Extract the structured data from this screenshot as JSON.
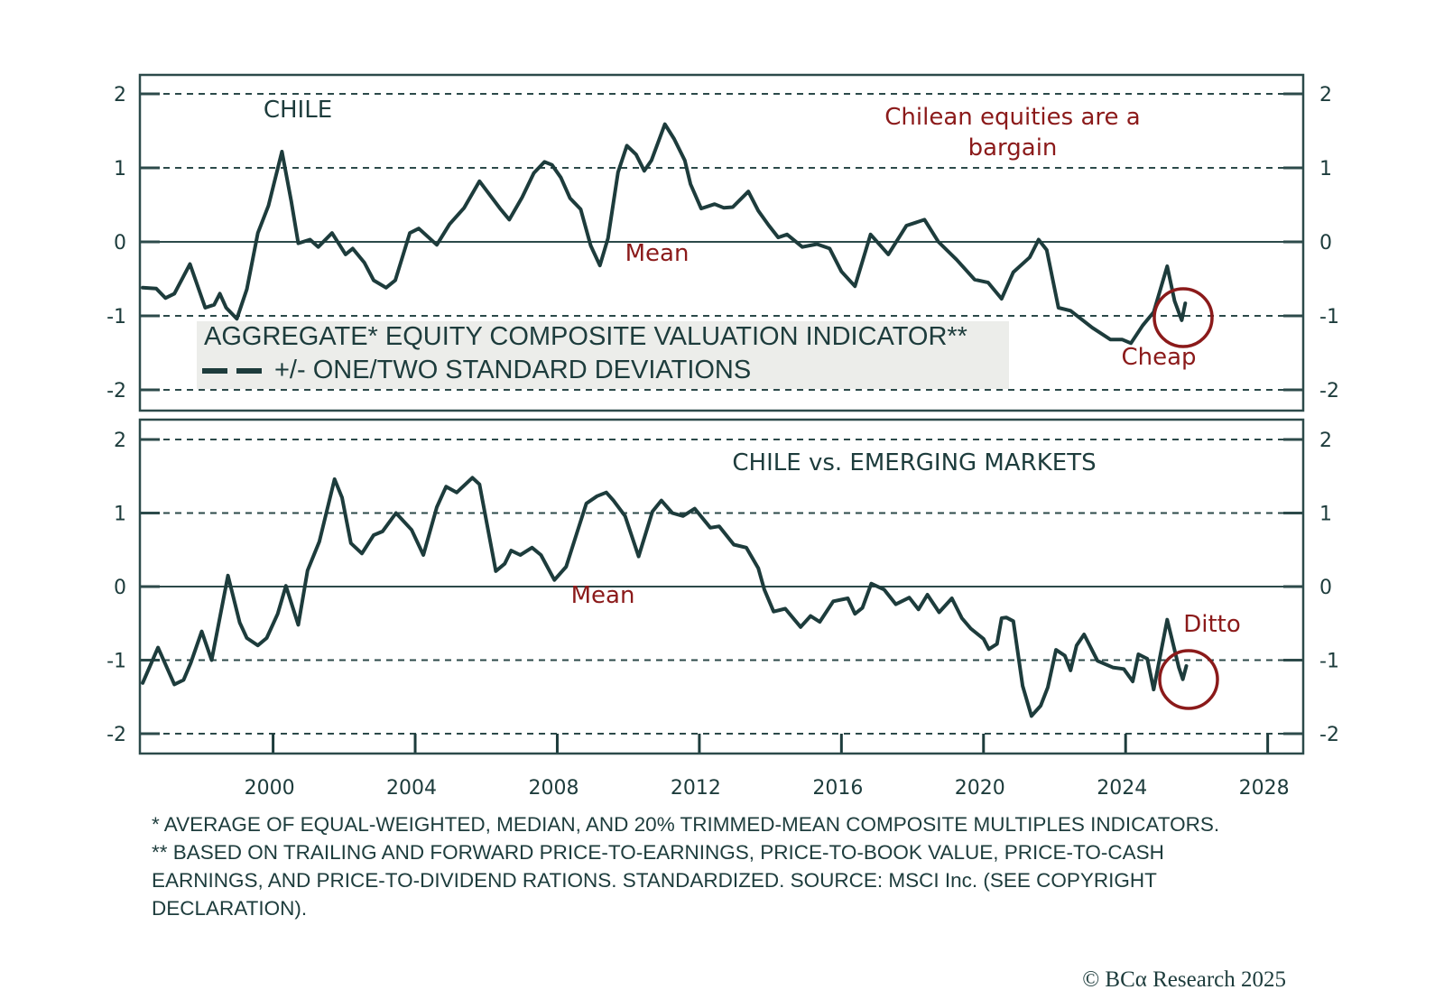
{
  "colors": {
    "line": "#1d3c3c",
    "annotation": "#8b1a1a",
    "legend_bg": "#ecedea",
    "frame": "#2c4a4a"
  },
  "chart_data": [
    {
      "type": "line",
      "title": "CHILE",
      "x_axis": {
        "range": [
          1996.25,
          2029.0
        ],
        "ticks": [
          2000,
          2004,
          2008,
          2012,
          2016,
          2020,
          2024,
          2028
        ],
        "tick_labels": [
          "2000",
          "2004",
          "2008",
          "2012",
          "2016",
          "2020",
          "2024",
          "2028"
        ],
        "labels_shown": false
      },
      "y_axis": {
        "range": [
          -2.25,
          2.25
        ],
        "ticks": [
          2,
          1,
          0,
          -1,
          -2
        ],
        "tick_labels": [
          "2",
          "1",
          "0",
          "-1",
          "-2"
        ],
        "sides": [
          "left",
          "right"
        ]
      },
      "reference_lines": [
        {
          "value": 2,
          "style": "dashed"
        },
        {
          "value": 1,
          "style": "dashed"
        },
        {
          "value": 0,
          "style": "solid",
          "label": "Mean"
        },
        {
          "value": -1,
          "style": "dashed"
        },
        {
          "value": -2,
          "style": "dashed"
        }
      ],
      "annotations": [
        {
          "text": "Chilean equities are a",
          "role": "headline-line-1"
        },
        {
          "text": "bargain",
          "role": "headline-line-2"
        },
        {
          "text": "Mean",
          "role": "mean-label"
        },
        {
          "text": "Cheap",
          "role": "circle-label",
          "circle_at": {
            "x": 2025.6,
            "y": -1.02
          }
        }
      ],
      "legend": {
        "position": "bottom-left",
        "entries": [
          {
            "text": "AGGREGATE* EQUITY COMPOSITE VALUATION INDICATOR**",
            "marker": "none"
          },
          {
            "text": "+/- ONE/TWO STANDARD DEVIATIONS",
            "marker": "dashed-line"
          }
        ]
      },
      "series": [
        {
          "name": "Chile aggregate equity composite valuation indicator",
          "points": [
            [
              1996.33,
              -0.62
            ],
            [
              1996.71,
              -0.63
            ],
            [
              1996.97,
              -0.76
            ],
            [
              1997.22,
              -0.7
            ],
            [
              1997.66,
              -0.3
            ],
            [
              1998.09,
              -0.89
            ],
            [
              1998.34,
              -0.85
            ],
            [
              1998.5,
              -0.7
            ],
            [
              1998.68,
              -0.89
            ],
            [
              1998.98,
              -1.04
            ],
            [
              1999.26,
              -0.64
            ],
            [
              1999.57,
              0.12
            ],
            [
              1999.87,
              0.49
            ],
            [
              2000.25,
              1.22
            ],
            [
              2000.51,
              0.55
            ],
            [
              2000.71,
              -0.02
            ],
            [
              2001.04,
              0.03
            ],
            [
              2001.27,
              -0.07
            ],
            [
              2001.66,
              0.12
            ],
            [
              2002.04,
              -0.17
            ],
            [
              2002.24,
              -0.09
            ],
            [
              2002.57,
              -0.28
            ],
            [
              2002.83,
              -0.52
            ],
            [
              2003.18,
              -0.62
            ],
            [
              2003.44,
              -0.52
            ],
            [
              2003.85,
              0.12
            ],
            [
              2004.1,
              0.18
            ],
            [
              2004.61,
              -0.04
            ],
            [
              2004.97,
              0.24
            ],
            [
              2005.38,
              0.46
            ],
            [
              2005.81,
              0.82
            ],
            [
              2006.39,
              0.45
            ],
            [
              2006.65,
              0.3
            ],
            [
              2007.01,
              0.6
            ],
            [
              2007.34,
              0.93
            ],
            [
              2007.64,
              1.08
            ],
            [
              2007.85,
              1.04
            ],
            [
              2008.1,
              0.87
            ],
            [
              2008.36,
              0.59
            ],
            [
              2008.66,
              0.44
            ],
            [
              2008.94,
              -0.05
            ],
            [
              2009.2,
              -0.32
            ],
            [
              2009.43,
              0.05
            ],
            [
              2009.71,
              0.94
            ],
            [
              2009.96,
              1.3
            ],
            [
              2010.22,
              1.18
            ],
            [
              2010.45,
              0.96
            ],
            [
              2010.65,
              1.1
            ],
            [
              2011.03,
              1.59
            ],
            [
              2011.29,
              1.39
            ],
            [
              2011.59,
              1.1
            ],
            [
              2011.75,
              0.78
            ],
            [
              2012.05,
              0.45
            ],
            [
              2012.43,
              0.51
            ],
            [
              2012.69,
              0.46
            ],
            [
              2012.94,
              0.47
            ],
            [
              2013.38,
              0.68
            ],
            [
              2013.66,
              0.42
            ],
            [
              2013.96,
              0.22
            ],
            [
              2014.22,
              0.06
            ],
            [
              2014.47,
              0.1
            ],
            [
              2014.9,
              -0.07
            ],
            [
              2015.31,
              -0.03
            ],
            [
              2015.67,
              -0.09
            ],
            [
              2016.0,
              -0.4
            ],
            [
              2016.38,
              -0.6
            ],
            [
              2016.82,
              0.1
            ],
            [
              2017.32,
              -0.17
            ],
            [
              2017.83,
              0.22
            ],
            [
              2018.34,
              0.3
            ],
            [
              2018.73,
              0.0
            ],
            [
              2019.24,
              -0.24
            ],
            [
              2019.75,
              -0.51
            ],
            [
              2020.13,
              -0.55
            ],
            [
              2020.51,
              -0.77
            ],
            [
              2020.84,
              -0.41
            ],
            [
              2021.3,
              -0.21
            ],
            [
              2021.55,
              0.03
            ],
            [
              2021.78,
              -0.11
            ],
            [
              2022.11,
              -0.89
            ],
            [
              2022.45,
              -0.93
            ],
            [
              2023.06,
              -1.16
            ],
            [
              2023.57,
              -1.32
            ],
            [
              2023.9,
              -1.32
            ],
            [
              2024.15,
              -1.37
            ],
            [
              2024.48,
              -1.13
            ],
            [
              2024.79,
              -0.95
            ],
            [
              2025.17,
              -0.33
            ],
            [
              2025.38,
              -0.8
            ],
            [
              2025.58,
              -1.06
            ],
            [
              2025.68,
              -0.83
            ]
          ]
        }
      ]
    },
    {
      "type": "line",
      "title": "CHILE vs. EMERGING MARKETS",
      "x_axis": {
        "range": [
          1996.25,
          2029.0
        ],
        "ticks": [
          2000,
          2004,
          2008,
          2012,
          2016,
          2020,
          2024,
          2028
        ],
        "tick_labels": [
          "2000",
          "2004",
          "2008",
          "2012",
          "2016",
          "2020",
          "2024",
          "2028"
        ],
        "labels_shown": true
      },
      "y_axis": {
        "range": [
          -2.25,
          2.25
        ],
        "ticks": [
          2,
          1,
          0,
          -1,
          -2
        ],
        "tick_labels": [
          "2",
          "1",
          "0",
          "-1",
          "-2"
        ],
        "sides": [
          "left",
          "right"
        ]
      },
      "reference_lines": [
        {
          "value": 2,
          "style": "dashed"
        },
        {
          "value": 1,
          "style": "dashed"
        },
        {
          "value": 0,
          "style": "solid",
          "label": "Mean"
        },
        {
          "value": -1,
          "style": "dashed"
        },
        {
          "value": -2,
          "style": "dashed"
        }
      ],
      "annotations": [
        {
          "text": "Mean",
          "role": "mean-label"
        },
        {
          "text": "Ditto",
          "role": "circle-label",
          "circle_at": {
            "x": 2025.7,
            "y": -1.26
          }
        }
      ],
      "series": [
        {
          "name": "Chile vs. Emerging Markets relative valuation indicator",
          "points": [
            [
              1996.33,
              -1.31
            ],
            [
              1996.76,
              -0.83
            ],
            [
              1997.22,
              -1.33
            ],
            [
              1997.48,
              -1.27
            ],
            [
              1997.68,
              -1.04
            ],
            [
              1997.99,
              -0.61
            ],
            [
              1998.27,
              -1.0
            ],
            [
              1998.73,
              0.15
            ],
            [
              1999.06,
              -0.49
            ],
            [
              1999.26,
              -0.7
            ],
            [
              1999.57,
              -0.8
            ],
            [
              1999.82,
              -0.7
            ],
            [
              2000.13,
              -0.37
            ],
            [
              2000.36,
              0.01
            ],
            [
              2000.71,
              -0.52
            ],
            [
              2000.97,
              0.22
            ],
            [
              2001.3,
              0.61
            ],
            [
              2001.73,
              1.46
            ],
            [
              2001.94,
              1.21
            ],
            [
              2002.19,
              0.59
            ],
            [
              2002.5,
              0.45
            ],
            [
              2002.83,
              0.7
            ],
            [
              2003.08,
              0.75
            ],
            [
              2003.46,
              1.0
            ],
            [
              2003.9,
              0.77
            ],
            [
              2004.23,
              0.43
            ],
            [
              2004.61,
              1.08
            ],
            [
              2004.87,
              1.36
            ],
            [
              2005.17,
              1.28
            ],
            [
              2005.61,
              1.48
            ],
            [
              2005.81,
              1.39
            ],
            [
              2006.27,
              0.21
            ],
            [
              2006.52,
              0.31
            ],
            [
              2006.7,
              0.49
            ],
            [
              2006.96,
              0.43
            ],
            [
              2007.29,
              0.53
            ],
            [
              2007.54,
              0.43
            ],
            [
              2007.92,
              0.09
            ],
            [
              2008.25,
              0.27
            ],
            [
              2008.56,
              0.74
            ],
            [
              2008.82,
              1.13
            ],
            [
              2009.12,
              1.23
            ],
            [
              2009.38,
              1.28
            ],
            [
              2009.58,
              1.17
            ],
            [
              2009.91,
              0.96
            ],
            [
              2010.29,
              0.41
            ],
            [
              2010.68,
              1.02
            ],
            [
              2010.93,
              1.17
            ],
            [
              2011.24,
              1.0
            ],
            [
              2011.54,
              0.96
            ],
            [
              2011.87,
              1.06
            ],
            [
              2012.31,
              0.8
            ],
            [
              2012.56,
              0.82
            ],
            [
              2012.97,
              0.57
            ],
            [
              2013.32,
              0.53
            ],
            [
              2013.66,
              0.25
            ],
            [
              2013.83,
              -0.04
            ],
            [
              2014.09,
              -0.34
            ],
            [
              2014.42,
              -0.3
            ],
            [
              2014.85,
              -0.55
            ],
            [
              2015.13,
              -0.4
            ],
            [
              2015.39,
              -0.48
            ],
            [
              2015.77,
              -0.2
            ],
            [
              2016.18,
              -0.16
            ],
            [
              2016.38,
              -0.37
            ],
            [
              2016.59,
              -0.29
            ],
            [
              2016.84,
              0.04
            ],
            [
              2017.2,
              -0.04
            ],
            [
              2017.53,
              -0.24
            ],
            [
              2017.91,
              -0.15
            ],
            [
              2018.17,
              -0.31
            ],
            [
              2018.42,
              -0.11
            ],
            [
              2018.75,
              -0.35
            ],
            [
              2019.11,
              -0.16
            ],
            [
              2019.39,
              -0.43
            ],
            [
              2019.64,
              -0.57
            ],
            [
              2020.0,
              -0.71
            ],
            [
              2020.15,
              -0.85
            ],
            [
              2020.38,
              -0.78
            ],
            [
              2020.51,
              -0.43
            ],
            [
              2020.64,
              -0.42
            ],
            [
              2020.84,
              -0.47
            ],
            [
              2021.1,
              -1.35
            ],
            [
              2021.35,
              -1.76
            ],
            [
              2021.61,
              -1.62
            ],
            [
              2021.81,
              -1.37
            ],
            [
              2022.04,
              -0.86
            ],
            [
              2022.29,
              -0.94
            ],
            [
              2022.45,
              -1.14
            ],
            [
              2022.62,
              -0.8
            ],
            [
              2022.83,
              -0.65
            ],
            [
              2023.21,
              -1.01
            ],
            [
              2023.64,
              -1.1
            ],
            [
              2023.95,
              -1.12
            ],
            [
              2024.2,
              -1.29
            ],
            [
              2024.36,
              -0.92
            ],
            [
              2024.61,
              -0.98
            ],
            [
              2024.79,
              -1.4
            ],
            [
              2025.17,
              -0.45
            ],
            [
              2025.5,
              -1.1
            ],
            [
              2025.61,
              -1.26
            ],
            [
              2025.71,
              -1.08
            ]
          ]
        }
      ]
    }
  ],
  "footnotes": {
    "note1": "* AVERAGE OF EQUAL-WEIGHTED, MEDIAN, AND 20% TRIMMED-MEAN COMPOSITE MULTIPLES INDICATORS.",
    "note2": "** BASED ON TRAILING AND FORWARD PRICE-TO-EARNINGS, PRICE-TO-BOOK VALUE, PRICE-TO-CASH EARNINGS, AND PRICE-TO-DIVIDEND RATIONS. STANDARDIZED. SOURCE: MSCI Inc. (SEE COPYRIGHT DECLARATION)."
  },
  "copyright": "© BCα Research 2025"
}
